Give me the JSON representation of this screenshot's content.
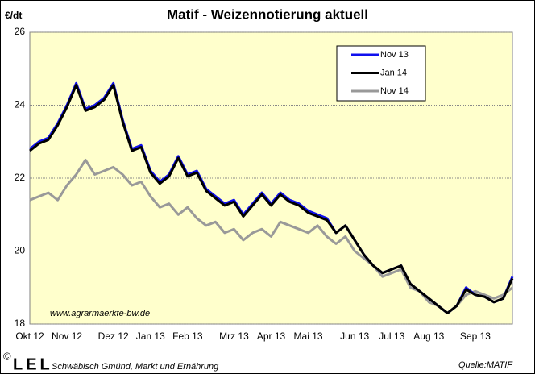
{
  "chart_data": {
    "type": "line",
    "title": "Matif - Weizennotierung aktuell",
    "y_label": "€/dt",
    "website": "www.agrarmaerkte-bw.de",
    "copyright": "©",
    "logo": "LEL",
    "footer": "Schwäbisch Gmünd, Markt und Ernährung",
    "source": "Quelle:MATIF",
    "categories": [
      "Okt 12",
      null,
      null,
      null,
      "Nov 12",
      null,
      null,
      null,
      null,
      "Dez 12",
      null,
      null,
      null,
      "Jan 13",
      null,
      null,
      null,
      "Feb 13",
      null,
      null,
      null,
      null,
      "Mrz 13",
      null,
      null,
      null,
      "Apr 13",
      null,
      null,
      null,
      "Mai 13",
      null,
      null,
      null,
      null,
      "Jun 13",
      null,
      null,
      null,
      "Jul 13",
      null,
      null,
      null,
      "Aug 13",
      null,
      null,
      null,
      null,
      "Sep 13",
      null,
      null,
      null,
      null
    ],
    "ylim": [
      18,
      26
    ],
    "yticks": [
      18,
      20,
      22,
      24,
      26
    ],
    "grid": true,
    "legend": "top-right",
    "series": [
      {
        "name": "Nov 13",
        "color": "#1010ee",
        "values": [
          22.8,
          23.0,
          23.1,
          23.5,
          24.0,
          24.6,
          23.9,
          24.0,
          24.2,
          24.6,
          23.6,
          22.8,
          22.9,
          22.2,
          21.9,
          22.1,
          22.6,
          22.1,
          22.2,
          21.7,
          21.5,
          21.3,
          21.4,
          21.0,
          21.3,
          21.6,
          21.3,
          21.6,
          21.4,
          21.3,
          21.1,
          21.0,
          20.9,
          20.5,
          20.7,
          20.3,
          19.9,
          19.6,
          19.4,
          19.5,
          19.6,
          19.1,
          18.9,
          18.7,
          18.5,
          18.3,
          18.5,
          19.0,
          18.8,
          18.75,
          18.6,
          18.7,
          19.3
        ]
      },
      {
        "name": "Jan 14",
        "color": "#000000",
        "values": [
          22.75,
          22.95,
          23.05,
          23.45,
          23.95,
          24.55,
          23.85,
          23.95,
          24.15,
          24.55,
          23.55,
          22.75,
          22.85,
          22.15,
          21.85,
          22.05,
          22.55,
          22.05,
          22.15,
          21.65,
          21.45,
          21.25,
          21.35,
          20.95,
          21.25,
          21.55,
          21.25,
          21.55,
          21.35,
          21.25,
          21.05,
          20.95,
          20.85,
          20.5,
          20.7,
          20.3,
          19.9,
          19.6,
          19.4,
          19.5,
          19.6,
          19.1,
          18.9,
          18.7,
          18.5,
          18.3,
          18.5,
          18.95,
          18.8,
          18.75,
          18.6,
          18.7,
          19.25
        ]
      },
      {
        "name": "Nov 14",
        "color": "#999999",
        "values": [
          21.4,
          21.5,
          21.6,
          21.4,
          21.8,
          22.1,
          22.5,
          22.1,
          22.2,
          22.3,
          22.1,
          21.8,
          21.9,
          21.5,
          21.2,
          21.3,
          21.0,
          21.2,
          20.9,
          20.7,
          20.8,
          20.5,
          20.6,
          20.3,
          20.5,
          20.6,
          20.4,
          20.8,
          20.7,
          20.6,
          20.5,
          20.7,
          20.4,
          20.2,
          20.4,
          20.0,
          19.8,
          19.6,
          19.3,
          19.4,
          19.5,
          19.0,
          18.9,
          18.6,
          18.5,
          18.3,
          18.5,
          18.8,
          18.9,
          18.8,
          18.7,
          18.8,
          19.0
        ]
      }
    ]
  }
}
